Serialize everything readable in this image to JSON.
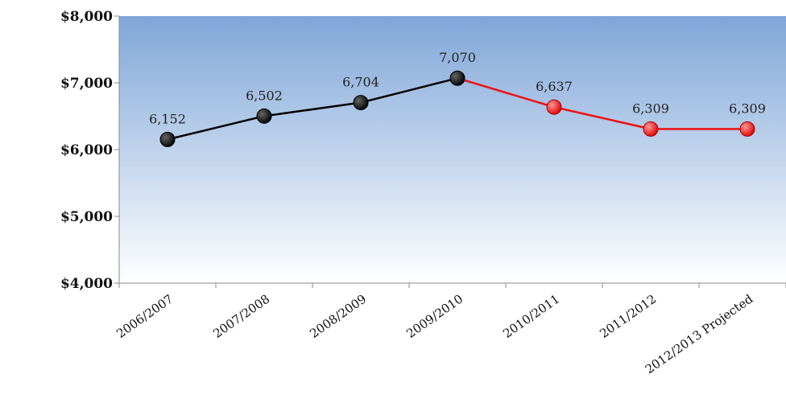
{
  "chart_data": {
    "type": "line",
    "title": "",
    "xlabel": "",
    "ylabel": "",
    "categories": [
      "2006/2007",
      "2007/2008",
      "2008/2009",
      "2009/2010",
      "2010/2011",
      "2011/2012",
      "2012/2013 Projected"
    ],
    "series": [
      {
        "values": [
          6152,
          6502,
          6704,
          7070,
          null,
          null,
          null
        ],
        "color": "#000000"
      },
      {
        "values": [
          null,
          null,
          null,
          7070,
          6637,
          6309,
          6309
        ],
        "color": "#ee1111"
      }
    ],
    "data_labels": [
      "6,152",
      "6,502",
      "6,704",
      "7,070",
      "6,637",
      "6,309",
      "6,309"
    ],
    "ylim": [
      4000,
      8000
    ],
    "yticks": [
      4000,
      5000,
      6000,
      7000,
      8000
    ],
    "ytick_labels": [
      "$4,000",
      "$5,000",
      "$6,000",
      "$7,000",
      "$8,000"
    ],
    "grid": false,
    "legend": "none",
    "plot_background": [
      "#7fa6d8",
      "#ffffff"
    ]
  }
}
